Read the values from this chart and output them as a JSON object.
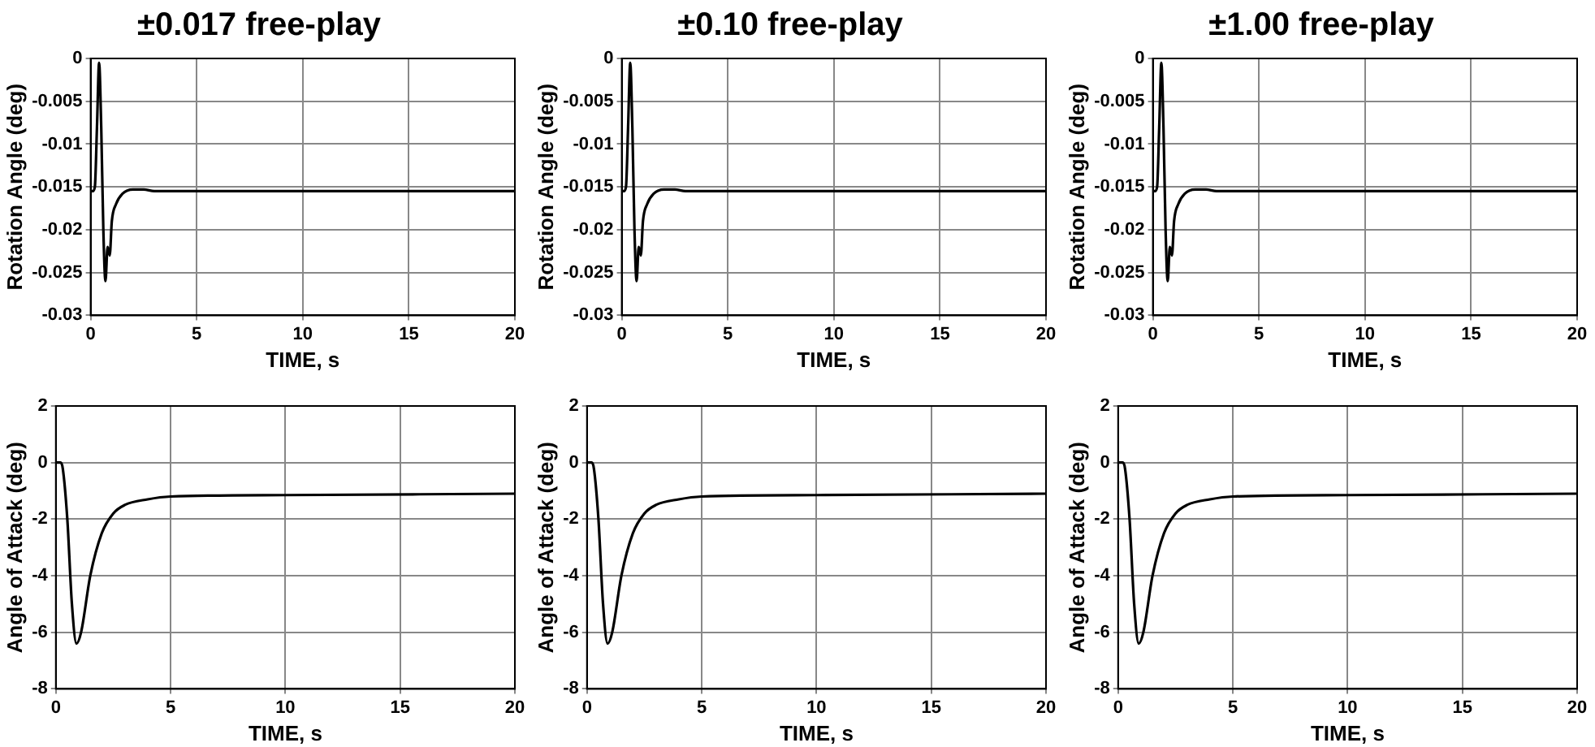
{
  "chart_data": [
    {
      "type": "line",
      "title": "±0.017 free-play",
      "xlabel": "TIME, s",
      "ylabel": "Rotation Angle (deg)",
      "xlim": [
        0,
        20
      ],
      "xticks": [
        0,
        5,
        10,
        15,
        20
      ],
      "ylim": [
        -0.03,
        0
      ],
      "yticks": [
        -0.03,
        -0.025,
        -0.02,
        -0.015,
        -0.01,
        -0.005,
        0
      ],
      "grid": true,
      "marker": "none",
      "line_style": "solid",
      "legend": false,
      "x": [
        0,
        0.1,
        0.2,
        0.3,
        0.4,
        0.5,
        0.6,
        0.7,
        0.8,
        0.9,
        1.0,
        1.2,
        1.5,
        2,
        2.5,
        3,
        5,
        10,
        20
      ],
      "series": [
        {
          "color": "#000000",
          "values": [
            -0.0155,
            -0.0155,
            -0.015,
            -0.008,
            -0.0005,
            -0.008,
            -0.02,
            -0.026,
            -0.022,
            -0.023,
            -0.019,
            -0.017,
            -0.0158,
            -0.0153,
            -0.0153,
            -0.0155,
            -0.0155,
            -0.0155,
            -0.0155
          ]
        }
      ]
    },
    {
      "type": "line",
      "title": "±0.10 free-play",
      "xlabel": "TIME, s",
      "ylabel": "Rotation Angle (deg)",
      "xlim": [
        0,
        20
      ],
      "xticks": [
        0,
        5,
        10,
        15,
        20
      ],
      "ylim": [
        -0.03,
        0
      ],
      "yticks": [
        -0.03,
        -0.025,
        -0.02,
        -0.015,
        -0.01,
        -0.005,
        0
      ],
      "grid": true,
      "marker": "none",
      "line_style": "solid",
      "legend": false,
      "x": [
        0,
        0.1,
        0.2,
        0.3,
        0.4,
        0.5,
        0.6,
        0.7,
        0.8,
        0.9,
        1.0,
        1.2,
        1.5,
        2,
        2.5,
        3,
        5,
        10,
        20
      ],
      "series": [
        {
          "color": "#000000",
          "values": [
            -0.0155,
            -0.0155,
            -0.015,
            -0.008,
            -0.0005,
            -0.008,
            -0.02,
            -0.026,
            -0.022,
            -0.023,
            -0.019,
            -0.017,
            -0.0158,
            -0.0153,
            -0.0153,
            -0.0155,
            -0.0155,
            -0.0155,
            -0.0155
          ]
        }
      ]
    },
    {
      "type": "line",
      "title": "±1.00 free-play",
      "xlabel": "TIME, s",
      "ylabel": "Rotation Angle (deg)",
      "xlim": [
        0,
        20
      ],
      "xticks": [
        0,
        5,
        10,
        15,
        20
      ],
      "ylim": [
        -0.03,
        0
      ],
      "yticks": [
        -0.03,
        -0.025,
        -0.02,
        -0.015,
        -0.01,
        -0.005,
        0
      ],
      "grid": true,
      "marker": "none",
      "line_style": "solid",
      "legend": false,
      "x": [
        0,
        0.1,
        0.2,
        0.3,
        0.4,
        0.5,
        0.6,
        0.7,
        0.8,
        0.9,
        1.0,
        1.2,
        1.5,
        2,
        2.5,
        3,
        5,
        10,
        20
      ],
      "series": [
        {
          "color": "#000000",
          "values": [
            -0.0155,
            -0.0155,
            -0.015,
            -0.008,
            -0.0005,
            -0.008,
            -0.02,
            -0.026,
            -0.022,
            -0.023,
            -0.019,
            -0.017,
            -0.0158,
            -0.0153,
            -0.0153,
            -0.0155,
            -0.0155,
            -0.0155,
            -0.0155
          ]
        }
      ]
    },
    {
      "type": "line",
      "xlabel": "TIME, s",
      "ylabel": "Angle of Attack (deg)",
      "xlim": [
        0,
        20
      ],
      "xticks": [
        0,
        5,
        10,
        15,
        20
      ],
      "ylim": [
        -8,
        2
      ],
      "yticks": [
        -8,
        -6,
        -4,
        -2,
        0,
        2
      ],
      "grid": true,
      "marker": "none",
      "line_style": "solid",
      "legend": false,
      "x": [
        0,
        0.2,
        0.3,
        0.5,
        0.7,
        0.9,
        1.1,
        1.5,
        2,
        2.5,
        3,
        4,
        5,
        10,
        20
      ],
      "series": [
        {
          "color": "#000000",
          "values": [
            0,
            0,
            -0.2,
            -2,
            -5,
            -6.4,
            -6,
            -4,
            -2.5,
            -1.8,
            -1.5,
            -1.3,
            -1.2,
            -1.15,
            -1.1
          ]
        }
      ]
    },
    {
      "type": "line",
      "xlabel": "TIME, s",
      "ylabel": "Angle of Attack (deg)",
      "xlim": [
        0,
        20
      ],
      "xticks": [
        0,
        5,
        10,
        15,
        20
      ],
      "ylim": [
        -8,
        2
      ],
      "yticks": [
        -8,
        -6,
        -4,
        -2,
        0,
        2
      ],
      "grid": true,
      "marker": "none",
      "line_style": "solid",
      "legend": false,
      "x": [
        0,
        0.2,
        0.3,
        0.5,
        0.7,
        0.9,
        1.1,
        1.5,
        2,
        2.5,
        3,
        4,
        5,
        10,
        20
      ],
      "series": [
        {
          "color": "#000000",
          "values": [
            0,
            0,
            -0.2,
            -2,
            -5,
            -6.4,
            -6,
            -4,
            -2.5,
            -1.8,
            -1.5,
            -1.3,
            -1.2,
            -1.15,
            -1.1
          ]
        }
      ]
    },
    {
      "type": "line",
      "xlabel": "TIME, s",
      "ylabel": "Angle of Attack (deg)",
      "xlim": [
        0,
        20
      ],
      "xticks": [
        0,
        5,
        10,
        15,
        20
      ],
      "ylim": [
        -8,
        2
      ],
      "yticks": [
        -8,
        -6,
        -4,
        -2,
        0,
        2
      ],
      "grid": true,
      "marker": "none",
      "line_style": "solid",
      "legend": false,
      "x": [
        0,
        0.2,
        0.3,
        0.5,
        0.7,
        0.9,
        1.1,
        1.5,
        2,
        2.5,
        3,
        4,
        5,
        10,
        20
      ],
      "series": [
        {
          "color": "#000000",
          "values": [
            0,
            0,
            -0.2,
            -2,
            -5,
            -6.4,
            -6,
            -4,
            -2.5,
            -1.8,
            -1.5,
            -1.3,
            -1.2,
            -1.15,
            -1.1
          ]
        }
      ]
    }
  ]
}
